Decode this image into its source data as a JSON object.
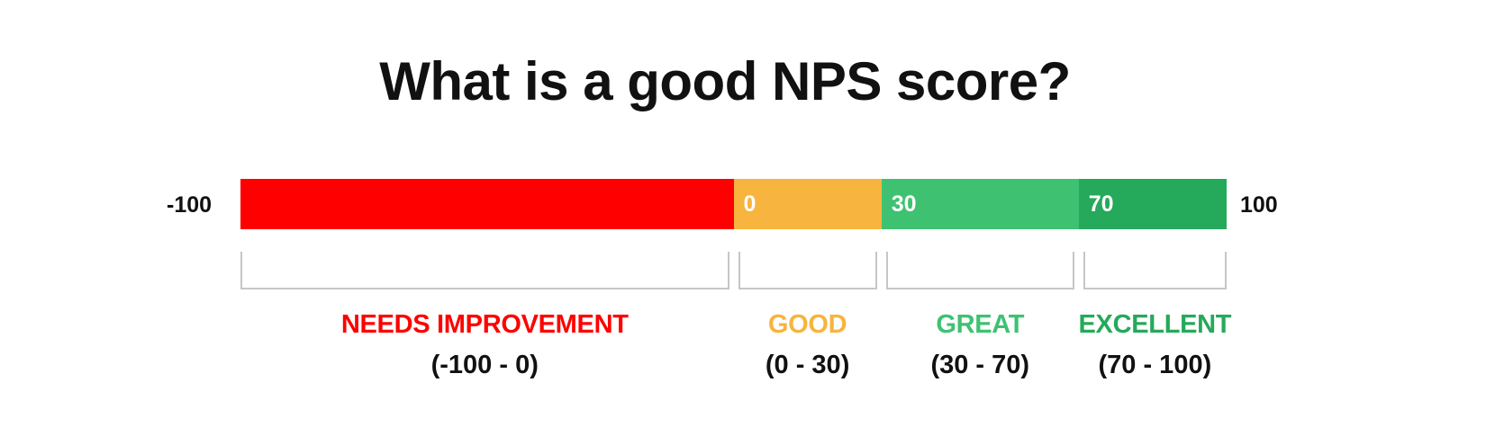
{
  "title": "What is a good NPS score?",
  "scale": {
    "min_label": "-100",
    "max_label": "100",
    "min": -100,
    "max": 100
  },
  "segments": [
    {
      "start": -100,
      "end": 0,
      "label": "",
      "color": "#ff0000",
      "category": "NEEDS IMPROVEMENT",
      "range": "(-100 - 0)"
    },
    {
      "start": 0,
      "end": 30,
      "label": "0",
      "color": "#f7b43e",
      "category": "GOOD",
      "range": "(0 - 30)"
    },
    {
      "start": 30,
      "end": 70,
      "label": "30",
      "color": "#3ec271",
      "category": "GREAT",
      "range": "(30 - 70)"
    },
    {
      "start": 70,
      "end": 100,
      "label": "70",
      "color": "#25a95a",
      "category": "EXCELLENT",
      "range": "(70 - 100)"
    }
  ],
  "colors": {
    "needs_improvement": "#ff0000",
    "good": "#f7b43e",
    "great": "#3ec271",
    "excellent": "#25a95a",
    "bracket": "#c6c6c6"
  }
}
